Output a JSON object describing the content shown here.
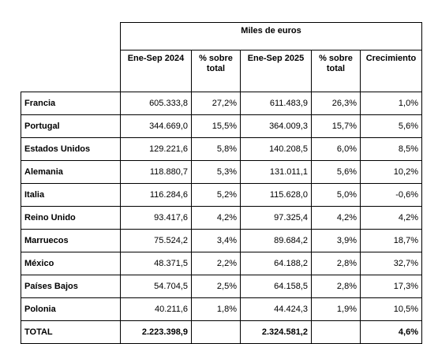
{
  "header": {
    "group_title": "Miles de euros",
    "columns": [
      "Ene-Sep 2024",
      "% sobre total",
      "Ene-Sep 2025",
      "% sobre total",
      "Crecimiento"
    ]
  },
  "rows": [
    {
      "country": "Francia",
      "v2024": "605.333,8",
      "p2024": "27,2%",
      "v2025": "611.483,9",
      "p2025": "26,3%",
      "growth": "1,0%"
    },
    {
      "country": "Portugal",
      "v2024": "344.669,0",
      "p2024": "15,5%",
      "v2025": "364.009,3",
      "p2025": "15,7%",
      "growth": "5,6%"
    },
    {
      "country": "Estados Unidos",
      "v2024": "129.221,6",
      "p2024": "5,8%",
      "v2025": "140.208,5",
      "p2025": "6,0%",
      "growth": "8,5%"
    },
    {
      "country": "Alemania",
      "v2024": "118.880,7",
      "p2024": "5,3%",
      "v2025": "131.011,1",
      "p2025": "5,6%",
      "growth": "10,2%"
    },
    {
      "country": "Italia",
      "v2024": "116.284,6",
      "p2024": "5,2%",
      "v2025": "115.628,0",
      "p2025": "5,0%",
      "growth": "-0,6%"
    },
    {
      "country": "Reino Unido",
      "v2024": "93.417,6",
      "p2024": "4,2%",
      "v2025": "97.325,4",
      "p2025": "4,2%",
      "growth": "4,2%"
    },
    {
      "country": "Marruecos",
      "v2024": "75.524,2",
      "p2024": "3,4%",
      "v2025": "89.684,2",
      "p2025": "3,9%",
      "growth": "18,7%"
    },
    {
      "country": "México",
      "v2024": "48.371,5",
      "p2024": "2,2%",
      "v2025": "64.188,2",
      "p2025": "2,8%",
      "growth": "32,7%"
    },
    {
      "country": "Países Bajos",
      "v2024": "54.704,5",
      "p2024": "2,5%",
      "v2025": "64.158,5",
      "p2025": "2,8%",
      "growth": "17,3%"
    },
    {
      "country": "Polonia",
      "v2024": "40.211,6",
      "p2024": "1,8%",
      "v2025": "44.424,3",
      "p2025": "1,9%",
      "growth": "10,5%"
    }
  ],
  "total": {
    "label": "TOTAL",
    "v2024": "2.223.398,9",
    "p2024": "",
    "v2025": "2.324.581,2",
    "p2025": "",
    "growth": "4,6%"
  }
}
